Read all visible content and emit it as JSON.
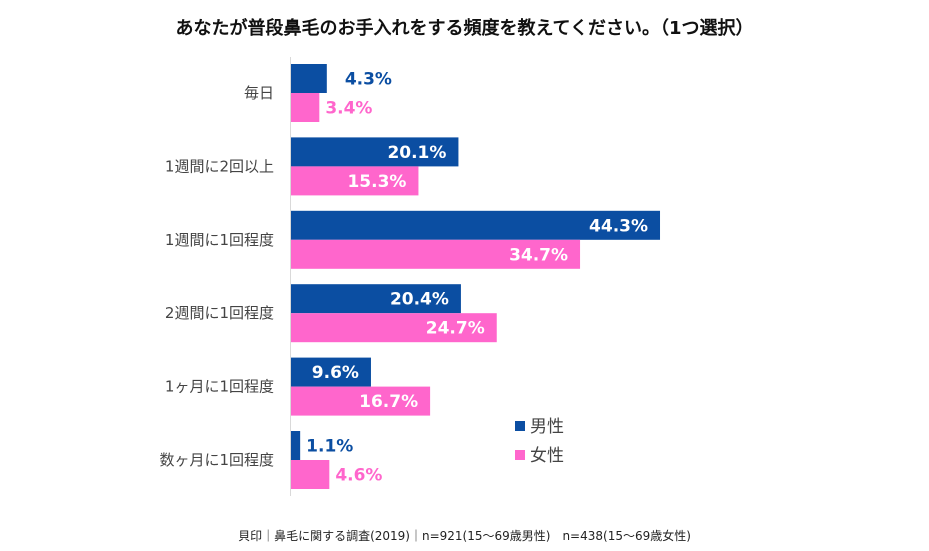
{
  "chart_data": {
    "type": "bar",
    "orientation": "horizontal",
    "title": "あなたが普段鼻毛のお手入れをする頻度を教えてください。（1つ選択）",
    "categories": [
      "毎日",
      "1週間に2回以上",
      "1週間に1回程度",
      "2週間に1回程度",
      "1ヶ月に1回程度",
      "数ヶ月に1回程度"
    ],
    "series": [
      {
        "name": "男性",
        "color": "#0B4EA2",
        "values": [
          4.3,
          20.1,
          44.3,
          20.4,
          9.6,
          1.1
        ],
        "labels": [
          "4.3%",
          "20.1%",
          "44.3%",
          "20.4%",
          "9.6%",
          "1.1%"
        ]
      },
      {
        "name": "女性",
        "color": "#FF66CC",
        "values": [
          3.4,
          15.3,
          34.7,
          24.7,
          16.7,
          4.6
        ],
        "labels": [
          "3.4%",
          "15.3%",
          "34.7%",
          "24.7%",
          "16.7%",
          "4.6%"
        ]
      }
    ],
    "xlabel": "",
    "ylabel": "",
    "xlim": [
      0,
      75
    ],
    "grid": false,
    "legend_position": "bottom-right",
    "unit": "%"
  },
  "footnote": "貝印｜鼻毛に関する調査(2019)｜n=921(15～69歳男性)　n=438(15～69歳女性)"
}
